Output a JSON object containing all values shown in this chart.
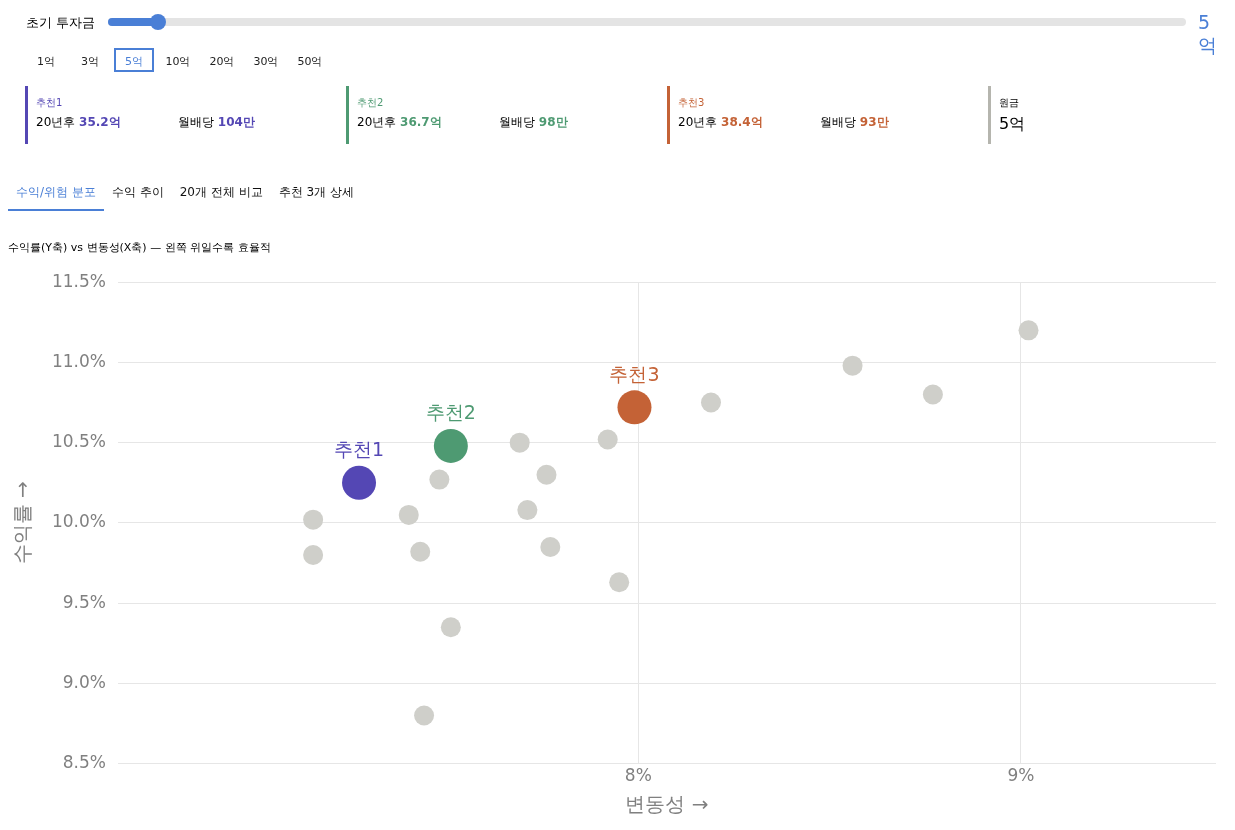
{
  "chart_data": [
    {
      "type": "other",
      "colors": [
        "#5447b4",
        "#4e9a72",
        "#c46236",
        "#b5b5ae"
      ],
      "annotations": [
        "초기 투자금",
        "5억",
        "1억",
        "3억",
        "5억",
        "10억",
        "20억",
        "30억",
        "50억",
        "추천1",
        "20년후",
        "35.2억",
        "월배당",
        "104만",
        "추천2",
        "20년후",
        "36.7억",
        "월배당",
        "98만",
        "추천3",
        "20년후",
        "38.4억",
        "월배당",
        "93만",
        "원금",
        "5억",
        "수익/위험 분포",
        "수익 추이",
        "20개 전체 비교",
        "추천 3개 상세"
      ]
    },
    {
      "type": "scatter",
      "title": "수익률(Y축) vs 변동성(X축) — 왼쪽 위일수록 효율적",
      "xlabel": "변동성 →",
      "ylabel": "수익률 →",
      "xlim": [
        6.64,
        9.51
      ],
      "xticks": [
        {
          "value": 8,
          "label": "8%"
        },
        {
          "value": 9,
          "label": "9%"
        }
      ],
      "ylim": [
        8.5,
        11.5
      ],
      "yticks": [
        {
          "value": 8.5,
          "label": "8.5%"
        },
        {
          "value": 9.0,
          "label": "9.0%"
        },
        {
          "value": 9.5,
          "label": "9.5%"
        },
        {
          "value": 10.0,
          "label": "10.0%"
        },
        {
          "value": 10.5,
          "label": "10.5%"
        },
        {
          "value": 11.0,
          "label": "11.0%"
        },
        {
          "value": 11.5,
          "label": "11.5%"
        }
      ],
      "grid": true,
      "legend": false,
      "marker": "circle",
      "series": [
        {
          "color": "#cfcfca",
          "x": [
            7.15,
            7.15,
            7.4,
            7.43,
            7.48,
            7.51,
            7.44,
            7.69,
            7.76,
            7.71,
            7.77,
            7.92,
            7.95,
            8.19,
            8.56,
            8.77,
            9.02
          ],
          "values": [
            10.02,
            9.8,
            10.05,
            9.82,
            10.27,
            9.35,
            8.8,
            10.5,
            10.3,
            10.08,
            9.85,
            10.52,
            9.63,
            10.75,
            10.98,
            10.8,
            11.2
          ]
        },
        {
          "name": "추천1",
          "color": "#5447b4",
          "x": [
            7.27
          ],
          "values": [
            10.25
          ]
        },
        {
          "name": "추천2",
          "color": "#4e9a72",
          "x": [
            7.51
          ],
          "values": [
            10.48
          ]
        },
        {
          "name": "추천3",
          "color": "#c46236",
          "x": [
            7.99
          ],
          "values": [
            10.72
          ]
        }
      ]
    }
  ]
}
